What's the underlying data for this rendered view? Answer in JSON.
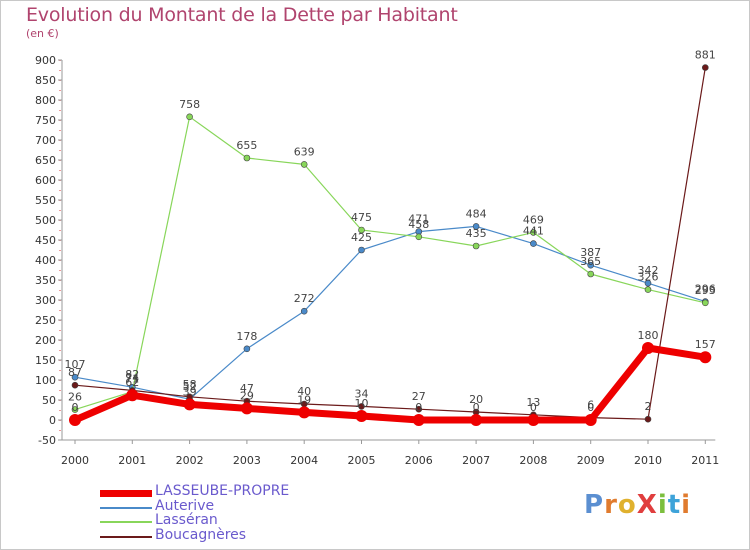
{
  "title": "Evolution du Montant de la Dette par Habitant",
  "subtitle": "(en €)",
  "logo": {
    "text": "ProXiti",
    "letters": [
      "P",
      "r",
      "o",
      "X",
      "i",
      "t",
      "i"
    ],
    "colors": [
      "#5b8fd1",
      "#e07b2e",
      "#e0b12e",
      "#e03e3e",
      "#7cbf3e",
      "#3ea3d9",
      "#e07b2e"
    ]
  },
  "chart_data": {
    "type": "line",
    "x": [
      "2000",
      "2001",
      "2002",
      "2003",
      "2004",
      "2005",
      "2006",
      "2007",
      "2008",
      "2009",
      "2010",
      "2011"
    ],
    "ylim": [
      -50,
      900
    ],
    "yticks": [
      -50,
      0,
      50,
      100,
      150,
      200,
      250,
      300,
      350,
      400,
      450,
      500,
      550,
      600,
      650,
      700,
      750,
      800,
      850,
      900
    ],
    "grid": false,
    "legend_position": "bottom-left",
    "series": [
      {
        "name": "LASSEUBE-PROPRE",
        "color": "#ee0000",
        "values": [
          0,
          62,
          39,
          29,
          19,
          10,
          0,
          0,
          0,
          0,
          180,
          157
        ],
        "labels": [
          "0",
          "62",
          "39",
          "29",
          "19",
          "10",
          "0",
          "0",
          "0",
          "0",
          "180",
          "157"
        ]
      },
      {
        "name": "Auterive",
        "color": "#4a8ac9",
        "values": [
          107,
          82,
          52,
          178,
          272,
          425,
          471,
          484,
          441,
          387,
          342,
          296
        ],
        "labels": [
          "107",
          "82",
          "52",
          "178",
          "272",
          "425",
          "471",
          "484",
          "441",
          "387",
          "342",
          "296"
        ]
      },
      {
        "name": "Lasséran",
        "color": "#88d65a",
        "values": [
          26,
          71,
          758,
          655,
          639,
          475,
          458,
          435,
          469,
          365,
          326,
          293
        ],
        "labels": [
          "26",
          "71",
          "758",
          "655",
          "639",
          "475",
          "458",
          "435",
          "469",
          "365",
          "326",
          "293"
        ]
      },
      {
        "name": "Boucagnères",
        "color": "#6b1a1a",
        "values": [
          87,
          74,
          58,
          47,
          40,
          34,
          27,
          20,
          13,
          6,
          2,
          881
        ],
        "labels": [
          "87",
          "74",
          "58",
          "47",
          "40",
          "34",
          "27",
          "20",
          "13",
          "6",
          "2",
          "881"
        ]
      }
    ]
  }
}
